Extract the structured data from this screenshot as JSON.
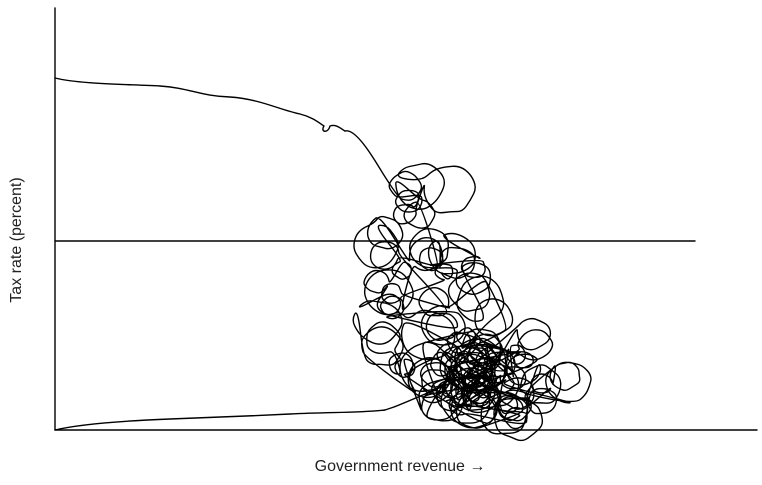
{
  "chart_data": {
    "type": "line",
    "x_label": "Government revenue →",
    "y_label": "Tax rate (percent)"
  }
}
